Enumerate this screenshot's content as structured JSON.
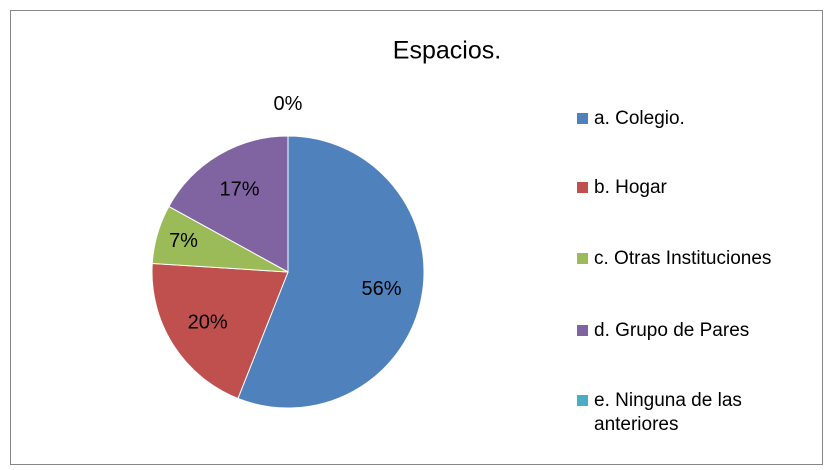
{
  "chart_data": {
    "type": "pie",
    "title": "Espacios.",
    "categories": [
      "a. Colegio.",
      "b. Hogar",
      "c. Otras Instituciones",
      "d. Grupo de Pares",
      "e. Ninguna de las anteriores"
    ],
    "values": [
      56,
      20,
      7,
      17,
      0
    ],
    "value_labels": [
      "56%",
      "20%",
      "7%",
      "17%",
      "0%"
    ],
    "colors": [
      "#4f81bd",
      "#c0504d",
      "#9bbb59",
      "#8064a2",
      "#4bacc6"
    ]
  }
}
